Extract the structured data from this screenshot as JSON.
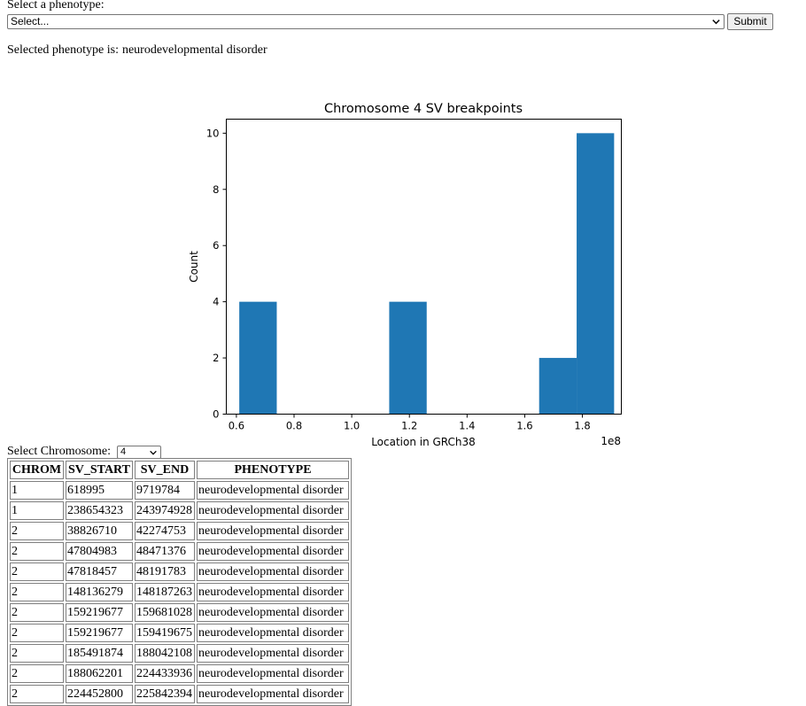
{
  "form": {
    "label": "Select a phenotype:",
    "select_value": "Select...",
    "submit_label": "Submit"
  },
  "selected": {
    "prefix": "Selected phenotype is:",
    "value": "neurodevelopmental disorder"
  },
  "chart_data": {
    "type": "bar",
    "title": "Chromosome 4 SV breakpoints",
    "xlabel": "Location in GRCh38",
    "ylabel": "Count",
    "x_offset_label": "1e8",
    "xlim": [
      0.565,
      1.935
    ],
    "ylim": [
      0,
      10.5
    ],
    "x_ticks": [
      0.6,
      0.8,
      1.0,
      1.2,
      1.4,
      1.6,
      1.8
    ],
    "x_tick_labels": [
      "0.6",
      "0.8",
      "1.0",
      "1.2",
      "1.4",
      "1.6",
      "1.8"
    ],
    "y_ticks": [
      0,
      2,
      4,
      6,
      8,
      10
    ],
    "y_tick_labels": [
      "0",
      "2",
      "4",
      "6",
      "8",
      "10"
    ],
    "bin_edges": [
      0.61,
      0.74,
      0.87,
      1.0,
      1.13,
      1.26,
      1.39,
      1.52,
      1.65,
      1.78,
      1.91
    ],
    "values": [
      4,
      0,
      0,
      0,
      4,
      0,
      0,
      0,
      2,
      10
    ],
    "bar_color": "#1f77b4",
    "grid": false
  },
  "chrom_select": {
    "label": "Select Chromosome:",
    "value": "4"
  },
  "table": {
    "headers": [
      "CHROM",
      "SV_START",
      "SV_END",
      "PHENOTYPE"
    ],
    "rows": [
      [
        "1",
        "618995",
        "9719784",
        "neurodevelopmental disorder"
      ],
      [
        "1",
        "238654323",
        "243974928",
        "neurodevelopmental disorder"
      ],
      [
        "2",
        "38826710",
        "42274753",
        "neurodevelopmental disorder"
      ],
      [
        "2",
        "47804983",
        "48471376",
        "neurodevelopmental disorder"
      ],
      [
        "2",
        "47818457",
        "48191783",
        "neurodevelopmental disorder"
      ],
      [
        "2",
        "148136279",
        "148187263",
        "neurodevelopmental disorder"
      ],
      [
        "2",
        "159219677",
        "159681028",
        "neurodevelopmental disorder"
      ],
      [
        "2",
        "159219677",
        "159419675",
        "neurodevelopmental disorder"
      ],
      [
        "2",
        "185491874",
        "188042108",
        "neurodevelopmental disorder"
      ],
      [
        "2",
        "188062201",
        "224433936",
        "neurodevelopmental disorder"
      ],
      [
        "2",
        "224452800",
        "225842394",
        "neurodevelopmental disorder"
      ]
    ]
  }
}
